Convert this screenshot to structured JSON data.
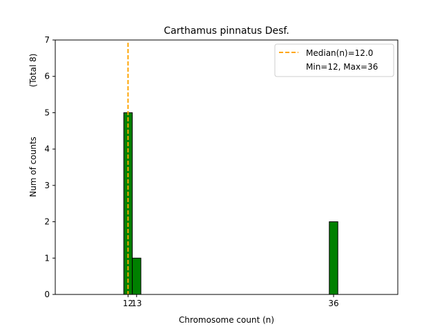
{
  "chart_data": {
    "type": "bar",
    "title": "Carthamus pinnatus Desf.",
    "xlabel": "Chromosome count (n)",
    "ylabel": "Num of counts",
    "ylabel_secondary": "(Total 8)",
    "x_ticks": [
      12,
      13,
      36
    ],
    "y_ticks": [
      0,
      1,
      2,
      3,
      4,
      5,
      6,
      7
    ],
    "xlim": [
      3.5,
      43.5
    ],
    "ylim": [
      0,
      7
    ],
    "bars": [
      {
        "x": 12,
        "value": 5
      },
      {
        "x": 13,
        "value": 1
      },
      {
        "x": 36,
        "value": 2
      }
    ],
    "bar_color": "#008000",
    "median": 12.0,
    "median_color": "#FFA500",
    "legend": {
      "placement": "top-right",
      "median_label": "Median(n)=12.0",
      "range_label": "Min=12, Max=36"
    }
  }
}
